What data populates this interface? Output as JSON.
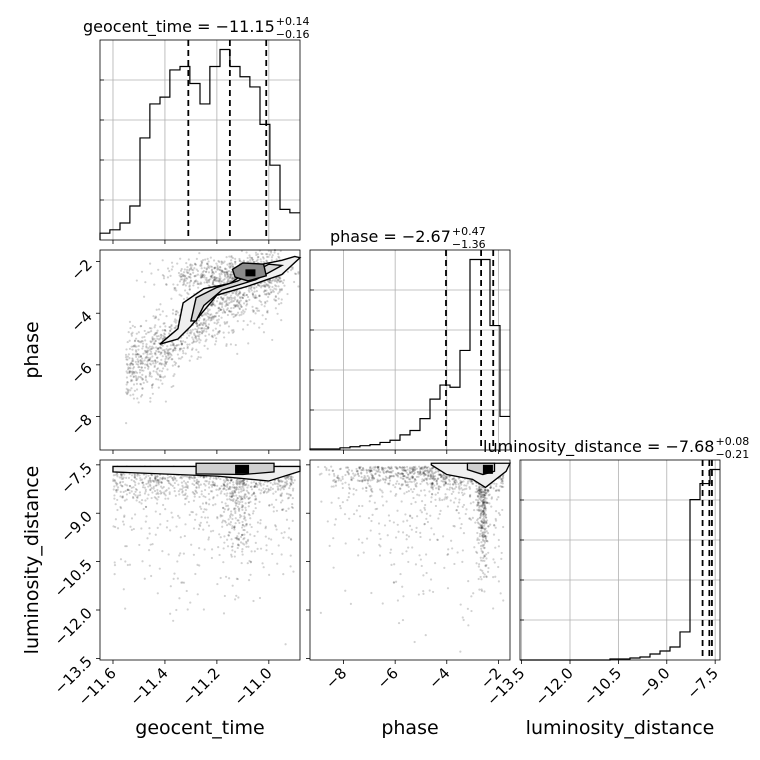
{
  "chart_data": {
    "type": "corner",
    "parameters": [
      "geocent_time",
      "phase",
      "luminosity_distance"
    ],
    "titles": [
      {
        "name": "geocent_time",
        "median": "−11.15",
        "plus": "+0.14",
        "minus": "−0.16"
      },
      {
        "name": "phase",
        "median": "−2.67",
        "plus": "+0.47",
        "minus": "−1.36"
      },
      {
        "name": "luminosity_distance",
        "median": "−7.68",
        "plus": "+0.08",
        "minus": "−0.21"
      }
    ],
    "quantiles": {
      "geocent_time": [
        -11.31,
        -11.15,
        -11.01
      ],
      "phase": [
        -4.03,
        -2.67,
        -2.2
      ],
      "luminosity_distance": [
        -7.89,
        -7.68,
        -7.6
      ]
    },
    "ranges": {
      "geocent_time": [
        -11.65,
        -10.88
      ],
      "phase": [
        -9.3,
        -1.55
      ],
      "luminosity_distance": [
        -13.55,
        -7.35
      ]
    },
    "ticks": {
      "geocent_time": {
        "values": [
          -11.6,
          -11.4,
          -11.2,
          -11.0
        ],
        "labels": [
          "−11.6",
          "−11.4",
          "−11.2",
          "−11.0"
        ]
      },
      "phase_x": {
        "values": [
          -8,
          -6,
          -4,
          -2
        ],
        "labels": [
          "−8",
          "−6",
          "−4",
          "−2"
        ]
      },
      "phase_y": {
        "values": [
          -8,
          -6,
          -4,
          -2
        ],
        "labels": [
          "−8",
          "−6",
          "−4",
          "−2"
        ]
      },
      "luminosity_distance_x": {
        "values": [
          -13.5,
          -12.0,
          -10.5,
          -9.0,
          -7.5
        ],
        "labels": [
          "−13.5",
          "−12.0",
          "−10.5",
          "−9.0",
          "−7.5"
        ]
      },
      "luminosity_distance_y": {
        "values": [
          -13.5,
          -12.0,
          -10.5,
          -9.0,
          -7.5
        ],
        "labels": [
          "−13.5",
          "−12.0",
          "−10.5",
          "−9.0",
          "−7.5"
        ]
      }
    },
    "histograms": {
      "geocent_time": {
        "edges": [
          -11.65,
          -11.612,
          -11.573,
          -11.535,
          -11.496,
          -11.458,
          -11.419,
          -11.381,
          -11.342,
          -11.304,
          -11.265,
          -11.227,
          -11.188,
          -11.15,
          -11.111,
          -11.073,
          -11.034,
          -10.996,
          -10.957,
          -10.919,
          -10.88
        ],
        "counts": [
          2,
          3,
          5,
          10,
          30,
          40,
          42,
          50,
          51,
          46,
          40,
          51,
          56,
          51,
          48,
          45,
          34,
          22,
          9,
          8
        ]
      },
      "phase": {
        "edges": [
          -9.3,
          -8.913,
          -8.525,
          -8.138,
          -7.75,
          -7.363,
          -6.975,
          -6.588,
          -6.2,
          -5.813,
          -5.425,
          -5.038,
          -4.65,
          -4.263,
          -3.875,
          -3.488,
          -3.1,
          -2.713,
          -2.325,
          -1.938,
          -1.55
        ],
        "counts": [
          1,
          1,
          1,
          2,
          3,
          4,
          5,
          7,
          9,
          14,
          18,
          29,
          47,
          60,
          58,
          92,
          176,
          176,
          115,
          31
        ]
      },
      "luminosity_distance": {
        "edges": [
          -13.55,
          -13.24,
          -12.93,
          -12.62,
          -12.31,
          -12.0,
          -11.69,
          -11.38,
          -11.07,
          -10.76,
          -10.45,
          -10.14,
          -9.83,
          -9.52,
          -9.21,
          -8.9,
          -8.59,
          -8.28,
          -7.97,
          -7.66,
          -7.35
        ],
        "counts": [
          0,
          0,
          0,
          0,
          0,
          0,
          0,
          0,
          0,
          1,
          1,
          2,
          3,
          6,
          9,
          13,
          28,
          160,
          176,
          190
        ]
      }
    },
    "grid": true
  }
}
